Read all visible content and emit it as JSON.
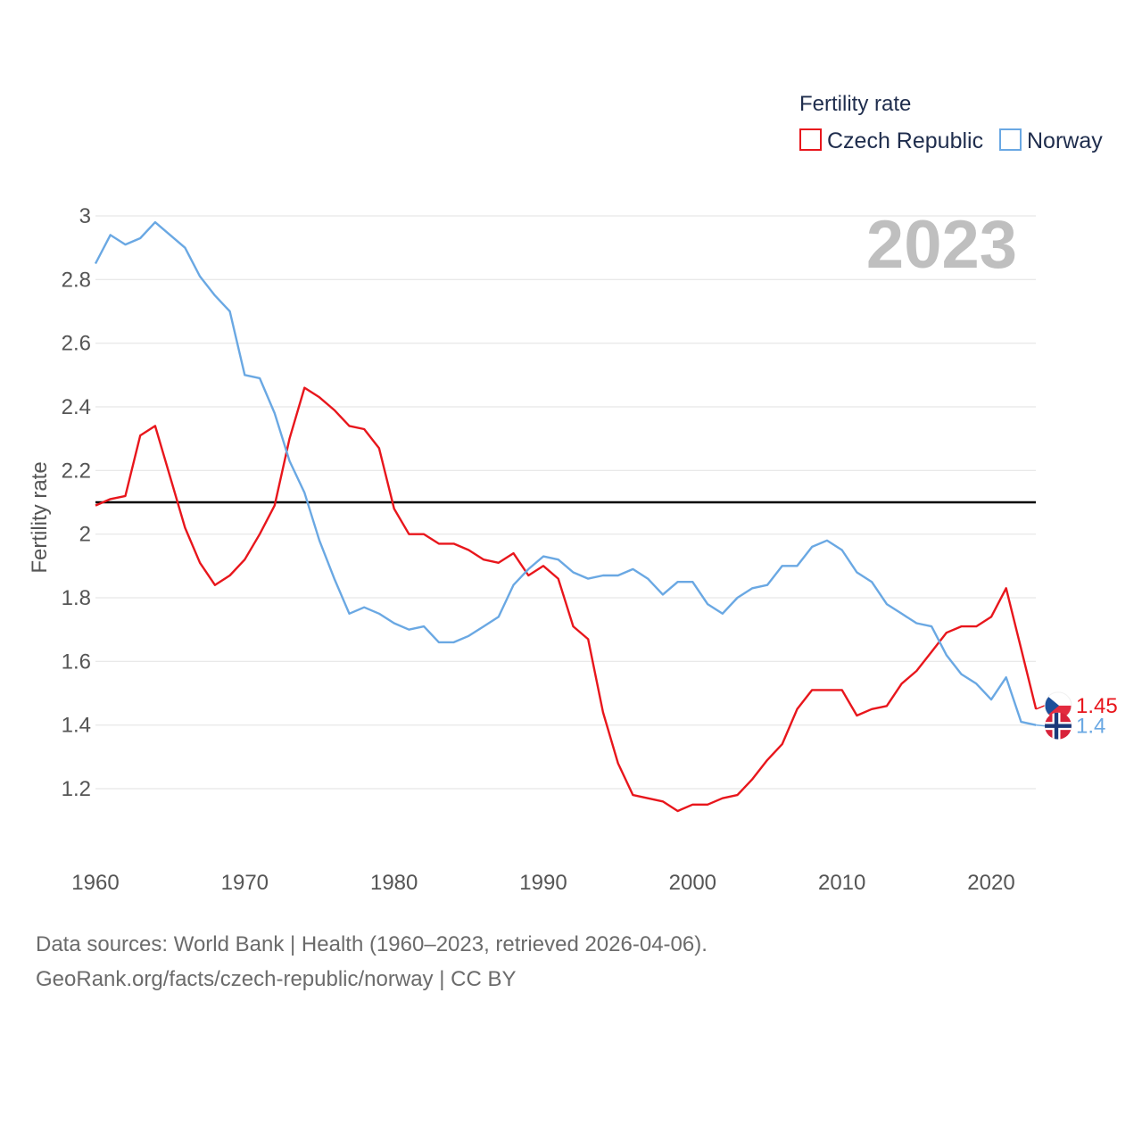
{
  "chart_data": {
    "type": "line",
    "ylabel": "Fertility rate",
    "ylim": [
      1.1,
      3.0
    ],
    "xlim": [
      1960,
      2023
    ],
    "yticks": [
      1.2,
      1.4,
      1.6,
      1.8,
      2,
      2.2,
      2.4,
      2.6,
      2.8,
      3
    ],
    "xticks": [
      1960,
      1970,
      1980,
      1990,
      2000,
      2010,
      2020
    ],
    "year_label": "2023",
    "reference_line": 2.1,
    "legend": {
      "title": "Fertility rate",
      "position": "top-right"
    },
    "x": [
      1960,
      1961,
      1962,
      1963,
      1964,
      1965,
      1966,
      1967,
      1968,
      1969,
      1970,
      1971,
      1972,
      1973,
      1974,
      1975,
      1976,
      1977,
      1978,
      1979,
      1980,
      1981,
      1982,
      1983,
      1984,
      1985,
      1986,
      1987,
      1988,
      1989,
      1990,
      1991,
      1992,
      1993,
      1994,
      1995,
      1996,
      1997,
      1998,
      1999,
      2000,
      2001,
      2002,
      2003,
      2004,
      2005,
      2006,
      2007,
      2008,
      2009,
      2010,
      2011,
      2012,
      2013,
      2014,
      2015,
      2016,
      2017,
      2018,
      2019,
      2020,
      2021,
      2022,
      2023
    ],
    "series": [
      {
        "name": "Czech Republic",
        "color": "#e8161c",
        "end_label": "1.45",
        "values": [
          2.09,
          2.11,
          2.12,
          2.31,
          2.34,
          2.18,
          2.02,
          1.91,
          1.84,
          1.87,
          1.92,
          2.0,
          2.09,
          2.3,
          2.46,
          2.43,
          2.39,
          2.34,
          2.33,
          2.27,
          2.08,
          2.0,
          2.0,
          1.97,
          1.97,
          1.95,
          1.92,
          1.91,
          1.94,
          1.87,
          1.9,
          1.86,
          1.71,
          1.67,
          1.44,
          1.28,
          1.18,
          1.17,
          1.16,
          1.13,
          1.15,
          1.15,
          1.17,
          1.18,
          1.23,
          1.29,
          1.34,
          1.45,
          1.51,
          1.51,
          1.51,
          1.43,
          1.45,
          1.46,
          1.53,
          1.57,
          1.63,
          1.69,
          1.71,
          1.71,
          1.74,
          1.83,
          1.64,
          1.45
        ]
      },
      {
        "name": "Norway",
        "color": "#6aa8e3",
        "end_label": "1.4",
        "values": [
          2.85,
          2.94,
          2.91,
          2.93,
          2.98,
          2.94,
          2.9,
          2.81,
          2.75,
          2.7,
          2.5,
          2.49,
          2.38,
          2.23,
          2.13,
          1.98,
          1.86,
          1.75,
          1.77,
          1.75,
          1.72,
          1.7,
          1.71,
          1.66,
          1.66,
          1.68,
          1.71,
          1.74,
          1.84,
          1.89,
          1.93,
          1.92,
          1.88,
          1.86,
          1.87,
          1.87,
          1.89,
          1.86,
          1.81,
          1.85,
          1.85,
          1.78,
          1.75,
          1.8,
          1.83,
          1.84,
          1.9,
          1.9,
          1.96,
          1.98,
          1.95,
          1.88,
          1.85,
          1.78,
          1.75,
          1.72,
          1.71,
          1.62,
          1.56,
          1.53,
          1.48,
          1.55,
          1.41,
          1.4
        ]
      }
    ]
  },
  "footer": {
    "sources": "Data sources: World Bank | Health (1960–2023, retrieved 2026-04-06).",
    "link": "GeoRank.org/facts/czech-republic/norway | CC BY"
  }
}
